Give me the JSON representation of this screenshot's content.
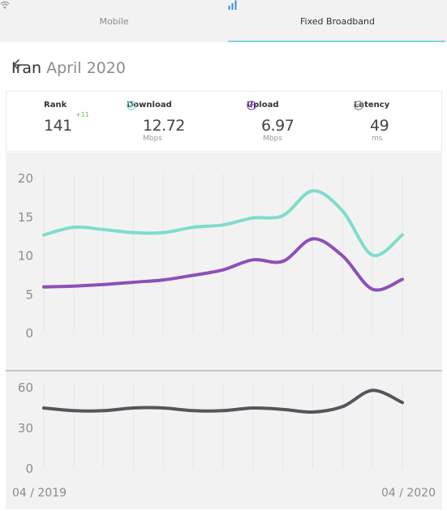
{
  "tabs": {
    "mobile_label": "Mobile",
    "fixed_label": "Fixed Broadband",
    "active": "Fixed Broadband"
  },
  "header": {
    "country": "Iran",
    "period": "April 2020"
  },
  "stats": {
    "rank": {
      "label": "Rank",
      "value": "141",
      "delta": "+11"
    },
    "download": {
      "label": "Download",
      "value": "12.72",
      "unit": "Mbps"
    },
    "upload": {
      "label": "Upload",
      "value": "6.97",
      "unit": "Mbps"
    },
    "latency": {
      "label": "Latency",
      "value": "49",
      "unit": "ms"
    }
  },
  "colors": {
    "download": "#7fdccc",
    "upload": "#8e4fb8",
    "latency": "#57545d",
    "rank_delta": "#6cc05a",
    "tab_underline": "#7fd6e6"
  },
  "chart_data": [
    {
      "type": "line",
      "x": [
        "04/2019",
        "05/2019",
        "06/2019",
        "07/2019",
        "08/2019",
        "09/2019",
        "10/2019",
        "11/2019",
        "12/2019",
        "01/2020",
        "02/2020",
        "03/2020",
        "04/2020"
      ],
      "series": [
        {
          "key": "download",
          "values": [
            12.7,
            13.7,
            13.4,
            13.0,
            13.0,
            13.7,
            14.0,
            14.9,
            15.2,
            18.4,
            15.8,
            10.1,
            12.72
          ]
        },
        {
          "key": "upload",
          "values": [
            6.0,
            6.1,
            6.3,
            6.6,
            6.9,
            7.5,
            8.2,
            9.5,
            9.3,
            12.2,
            10.0,
            5.7,
            6.97
          ]
        }
      ],
      "yticks": [
        "20",
        "15",
        "10",
        "5",
        "0"
      ],
      "ylim": [
        0,
        20
      ]
    },
    {
      "type": "line",
      "x": [
        "04/2019",
        "05/2019",
        "06/2019",
        "07/2019",
        "08/2019",
        "09/2019",
        "10/2019",
        "11/2019",
        "12/2019",
        "01/2020",
        "02/2020",
        "03/2020",
        "04/2020"
      ],
      "series": [
        {
          "key": "latency",
          "values": [
            45,
            43,
            43,
            45,
            45,
            43,
            43,
            45,
            44,
            42,
            46,
            58,
            49
          ]
        }
      ],
      "yticks": [
        "60",
        "30",
        "0"
      ],
      "ylim": [
        0,
        60
      ],
      "x_start_label": "04 / 2019",
      "x_end_label": "04 / 2020"
    }
  ]
}
